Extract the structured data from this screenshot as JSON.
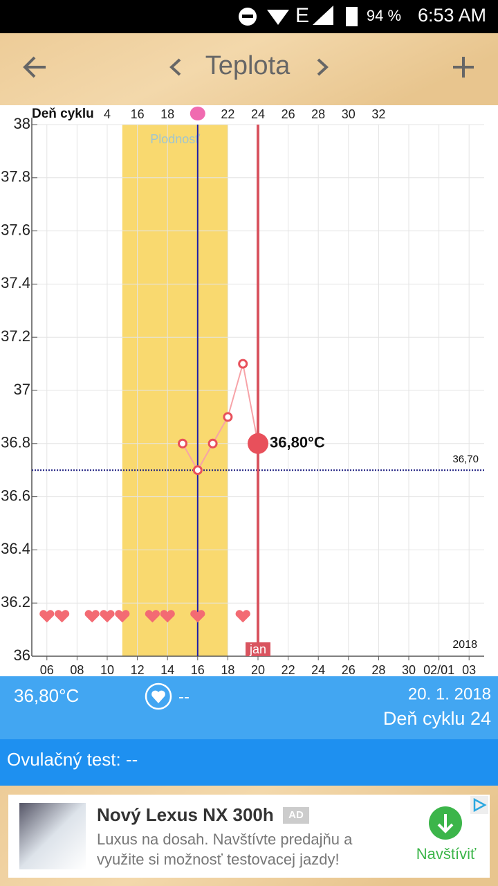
{
  "status_bar": {
    "network": "E",
    "battery": "94 %",
    "time": "6:53 AM"
  },
  "header": {
    "title": "Teplota"
  },
  "chart_data": {
    "type": "line",
    "x2_label": "Deň cyklu",
    "x": [
      15,
      16,
      17,
      18,
      19,
      20
    ],
    "series": [
      {
        "color": "#e8505b",
        "values": [
          36.8,
          36.7,
          36.8,
          36.9,
          37.1,
          36.8
        ],
        "value_labels": [
          null,
          null,
          null,
          null,
          null,
          "36,80°C"
        ]
      }
    ],
    "xlim": [
      5,
      35
    ],
    "xticks": [
      {
        "value": 6,
        "label": "06"
      },
      {
        "value": 8,
        "label": "08"
      },
      10,
      12,
      14,
      16,
      18,
      20,
      22,
      24,
      26,
      28,
      30,
      {
        "value": 32,
        "label": "02/01"
      },
      {
        "value": 34,
        "label": "03"
      }
    ],
    "x2lim": [
      9,
      39
    ],
    "x2ticks": [
      {
        "value": 14,
        "label": "4"
      },
      16,
      18,
      22,
      24,
      26,
      28,
      30,
      32
    ],
    "ylim": [
      36,
      38
    ],
    "yticks": [
      36,
      36.2,
      36.4,
      36.6,
      36.8,
      37,
      37.2,
      37.4,
      37.6,
      37.8,
      38
    ],
    "grid": true,
    "fertile_window": [
      11,
      18
    ],
    "fertile_label": "Plodnosť",
    "ovulation_day": 16,
    "coverline": 36.7,
    "coverline_label": "36,70",
    "selected_day": 20,
    "month_label": "jan",
    "year_label": "2018",
    "intercourse_days": [
      6,
      7,
      9,
      10,
      11,
      13,
      14,
      16,
      19
    ],
    "heart_level": 36.15
  },
  "summary": {
    "temperature": "36,80°C",
    "intercourse": "--",
    "date": "20. 1. 2018",
    "cycle_day": "Deň cyklu 24",
    "ovulation_test": "Ovulačný test: --"
  },
  "ad": {
    "title": "Nový Lexus NX 300h",
    "badge": "AD",
    "description": [
      "Luxus na dosah. Navštívte predajňu a",
      "využite si možnosť testovacej jazdy!"
    ],
    "action": "Navštíviť"
  }
}
